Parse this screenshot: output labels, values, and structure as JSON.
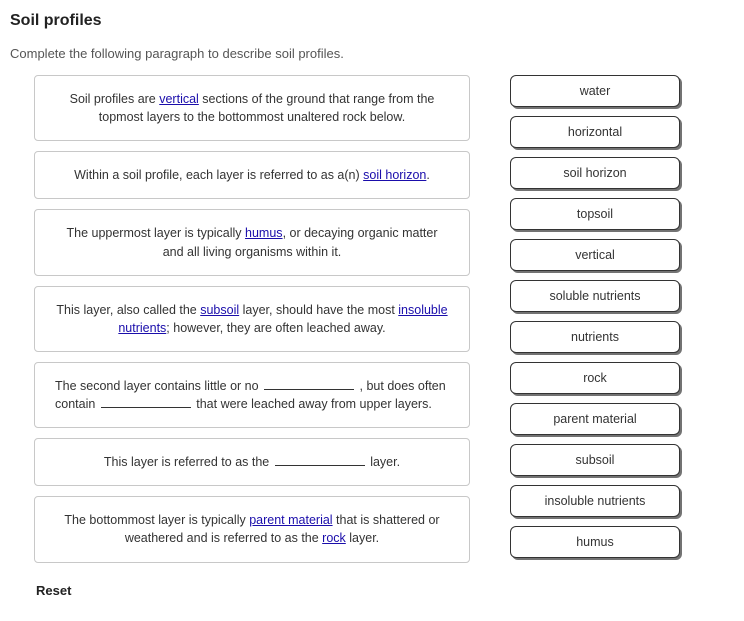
{
  "title": "Soil profiles",
  "instruction": "Complete the following paragraph to describe soil profiles.",
  "sentences": [
    {
      "pre": "Soil profiles are ",
      "fill": "vertical",
      "post": " sections of the ground that range from the topmost layers to the bottommost unaltered rock below."
    },
    {
      "pre": "Within a soil profile, each layer is referred to as a(n) ",
      "fill": "soil horizon",
      "post": "."
    },
    {
      "pre": "The uppermost layer is typically ",
      "fill": "humus",
      "post": ", or decaying organic matter and all living organisms within it."
    },
    {
      "pre": "This layer, also called the ",
      "fill": "subsoil",
      "mid": " layer, should have the most ",
      "fill2": "insoluble nutrients",
      "post": "; however, they are often leached away."
    },
    {
      "blank_sentence": true,
      "pre": "The second layer contains little or no ",
      "mid": " , but does often contain ",
      "post": " that were leached away from upper layers."
    },
    {
      "blank_sentence_single": true,
      "pre": "This layer is referred to as the ",
      "post": " layer."
    },
    {
      "pre": "The bottommost layer is typically ",
      "fill": "parent material",
      "mid": " that is shattered or weathered and is referred to as the ",
      "fill2": "rock",
      "post": " layer."
    }
  ],
  "bank": [
    "water",
    "horizontal",
    "soil horizon",
    "topsoil",
    "vertical",
    "soluble nutrients",
    "nutrients",
    "rock",
    "parent material",
    "subsoil",
    "insoluble nutrients",
    "humus"
  ],
  "reset_label": "Reset"
}
